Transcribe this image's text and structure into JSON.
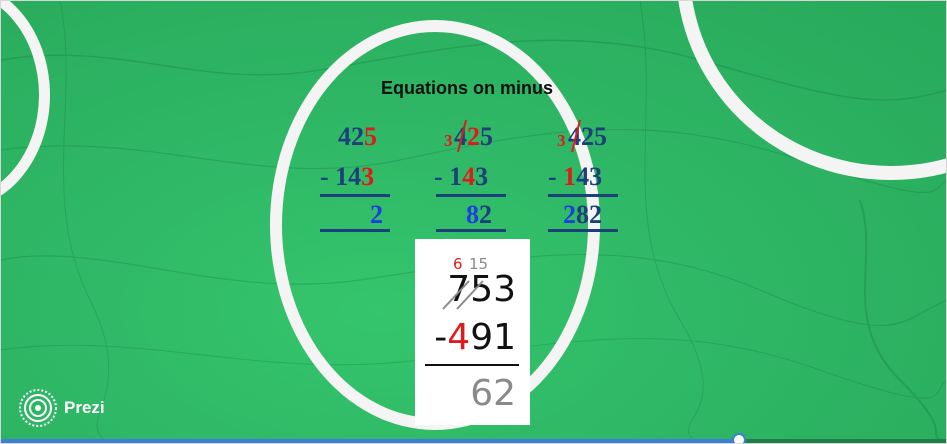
{
  "slide": {
    "title": "Equations on minus",
    "examples": [
      {
        "top_a": "42",
        "top_b": "5",
        "sub_a": "- 14",
        "sub_b": "3",
        "result": "2"
      },
      {
        "top_note": "3",
        "top_a": "4",
        "top_b": "2",
        "top_c": "5",
        "sub_a": "- 1",
        "sub_b": "4",
        "sub_c": "3",
        "result_a": "8",
        "result_b": "2"
      },
      {
        "top_note": "3",
        "top_a": "4",
        "top_b": "25",
        "sub_a": "- ",
        "sub_b": "1",
        "sub_c": "43",
        "result_a": "2",
        "result_b": "82"
      }
    ],
    "card": {
      "borrow_red": "6",
      "borrow_gray": "15",
      "minuend_a": "7",
      "minuend_b": "53",
      "subtrahend_a": "-",
      "subtrahend_b": "4",
      "subtrahend_c": "91",
      "difference": "62"
    }
  },
  "brand": {
    "label": "Prezi",
    "icon": "prezi-logo-icon"
  },
  "player": {
    "progress": 0.78
  },
  "colors": {
    "background": "#2fb866",
    "ring": "#f4f4f4",
    "accent_red": "#e01a1a",
    "digit_blue": "#1d3f7a",
    "highlight_blue": "#1d3fe0"
  }
}
